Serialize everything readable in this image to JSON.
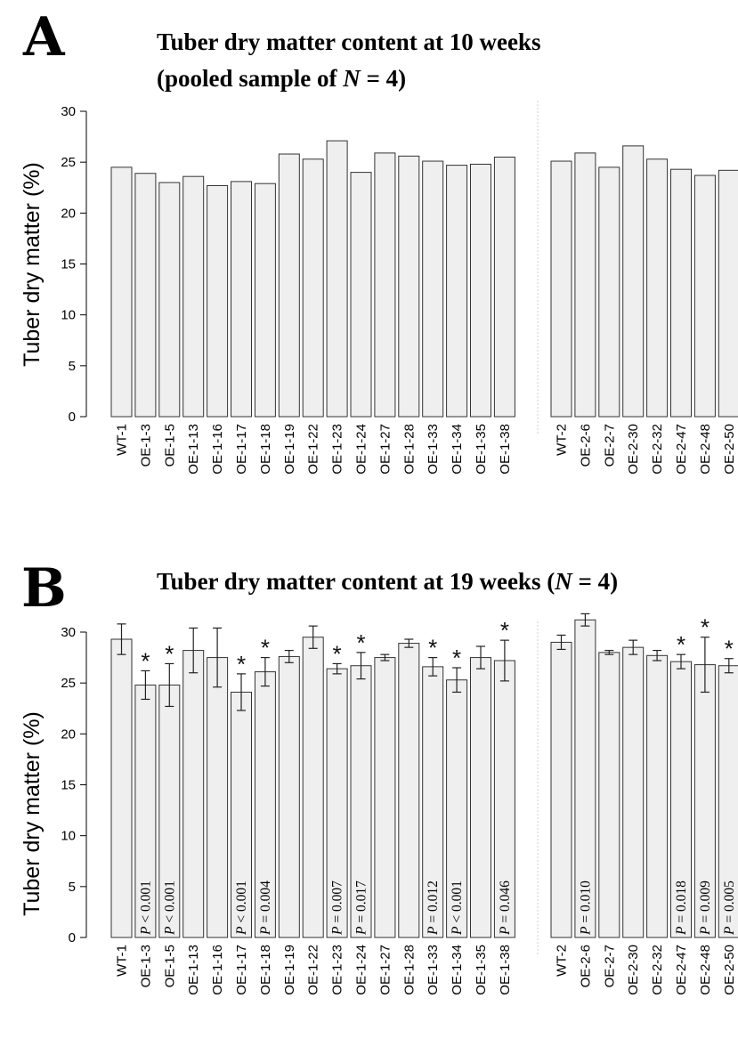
{
  "chart_data": [
    {
      "panel": "A",
      "type": "bar",
      "title_line1": "Tuber dry matter content at 10 weeks",
      "title_line2_prefix": "(pooled sample of ",
      "title_line2_italic": "N",
      "title_line2_suffix": " = 4)",
      "ylabel": "Tuber dry matter (%)",
      "ylim": [
        0,
        30
      ],
      "yticks": [
        0,
        5,
        10,
        15,
        20,
        25,
        30
      ],
      "groups": [
        {
          "categories": [
            "WT-1",
            "OE-1-3",
            "OE-1-5",
            "OE-1-13",
            "OE-1-16",
            "OE-1-17",
            "OE-1-18",
            "OE-1-19",
            "OE-1-22",
            "OE-1-23",
            "OE-1-24",
            "OE-1-27",
            "OE-1-28",
            "OE-1-33",
            "OE-1-34",
            "OE-1-35",
            "OE-1-38"
          ],
          "values": [
            24.5,
            23.9,
            23.0,
            23.6,
            22.7,
            23.1,
            22.9,
            25.8,
            25.3,
            27.1,
            24.0,
            25.9,
            25.6,
            25.1,
            24.7,
            24.8,
            25.5
          ]
        },
        {
          "categories": [
            "WT-2",
            "OE-2-6",
            "OE-2-7",
            "OE-2-30",
            "OE-2-32",
            "OE-2-47",
            "OE-2-48",
            "OE-2-50"
          ],
          "values": [
            25.1,
            25.9,
            24.5,
            26.6,
            25.3,
            24.3,
            23.7,
            24.2
          ]
        }
      ]
    },
    {
      "panel": "B",
      "type": "bar",
      "title_prefix": "Tuber dry matter content at 19 weeks (",
      "title_italic": "N",
      "title_suffix": " = 4)",
      "ylabel": "Tuber dry matter (%)",
      "ylim": [
        0,
        30
      ],
      "yticks": [
        0,
        5,
        10,
        15,
        20,
        25,
        30
      ],
      "groups": [
        {
          "categories": [
            "WT-1",
            "OE-1-3",
            "OE-1-5",
            "OE-1-13",
            "OE-1-16",
            "OE-1-17",
            "OE-1-18",
            "OE-1-19",
            "OE-1-22",
            "OE-1-23",
            "OE-1-24",
            "OE-1-27",
            "OE-1-28",
            "OE-1-33",
            "OE-1-34",
            "OE-1-35",
            "OE-1-38"
          ],
          "values": [
            29.3,
            24.8,
            24.8,
            28.2,
            27.5,
            24.1,
            26.1,
            27.6,
            29.5,
            26.4,
            26.7,
            27.5,
            28.9,
            26.6,
            25.3,
            27.5,
            27.2
          ],
          "errors": [
            1.5,
            1.4,
            2.1,
            2.2,
            2.9,
            1.8,
            1.4,
            0.6,
            1.1,
            0.5,
            1.3,
            0.3,
            0.4,
            0.9,
            1.2,
            1.1,
            2.0
          ],
          "significant": [
            false,
            true,
            true,
            false,
            false,
            true,
            true,
            false,
            false,
            true,
            true,
            false,
            false,
            true,
            true,
            false,
            true
          ],
          "p_values": [
            "",
            "< 0.001",
            "< 0.001",
            "",
            "",
            "< 0.001",
            "= 0.004",
            "",
            "",
            "= 0.007",
            "= 0.017",
            "",
            "",
            "= 0.012",
            "< 0.001",
            "",
            "= 0.046"
          ]
        },
        {
          "categories": [
            "WT-2",
            "OE-2-6",
            "OE-2-7",
            "OE-2-30",
            "OE-2-32",
            "OE-2-47",
            "OE-2-48",
            "OE-2-50"
          ],
          "values": [
            29.0,
            31.2,
            28.0,
            28.5,
            27.7,
            27.1,
            26.8,
            26.7
          ],
          "errors": [
            0.7,
            0.6,
            0.2,
            0.7,
            0.5,
            0.7,
            2.7,
            0.7
          ],
          "significant": [
            false,
            false,
            false,
            false,
            false,
            true,
            true,
            true
          ],
          "p_values": [
            "",
            "= 0.010",
            "",
            "",
            "",
            "= 0.018",
            "= 0.009",
            "= 0.005"
          ]
        }
      ]
    }
  ],
  "labels": {
    "panel_a": "A",
    "panel_b": "B",
    "p_symbol": "P",
    "star": "*"
  }
}
